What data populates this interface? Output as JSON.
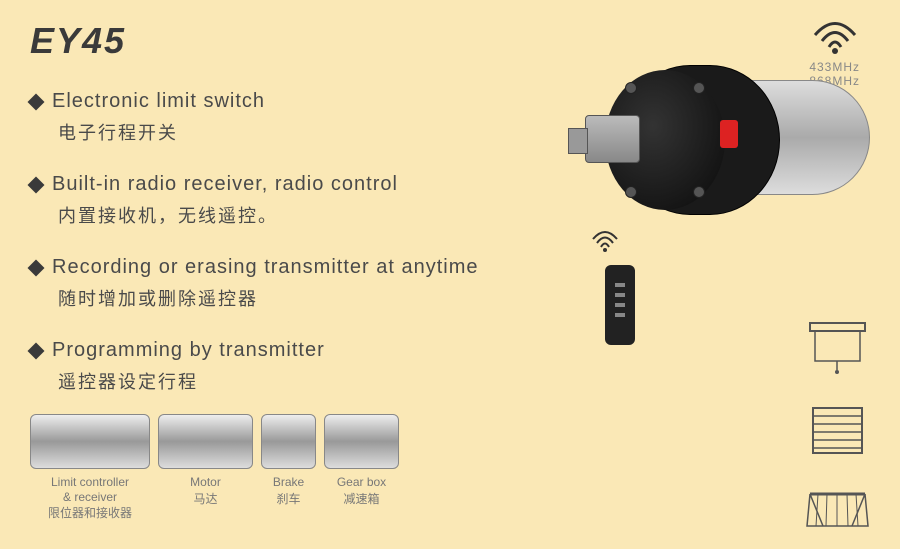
{
  "title": "EY45",
  "wifi": {
    "freq1": "433MHz",
    "freq2": "868MHz"
  },
  "features": [
    {
      "en": "Electronic limit switch",
      "cn": "电子行程开关"
    },
    {
      "en": "Built-in radio receiver, radio control",
      "cn": "内置接收机，无线遥控。"
    },
    {
      "en": "Recording or erasing transmitter at anytime",
      "cn": "随时增加或删除遥控器"
    },
    {
      "en": "Programming by transmitter",
      "cn": "遥控器设定行程"
    }
  ],
  "components": [
    {
      "width": 120,
      "en": "Limit controller\n& receiver",
      "cn": "限位器和接收器"
    },
    {
      "width": 95,
      "en": "Motor",
      "cn": "马达"
    },
    {
      "width": 55,
      "en": "Brake",
      "cn": "刹车"
    },
    {
      "width": 75,
      "en": "Gear box",
      "cn": "减速箱"
    }
  ],
  "colors": {
    "background": "#fae8b6",
    "text": "#4a4a4a",
    "title": "#3a3a3a",
    "component_label": "#777777"
  }
}
